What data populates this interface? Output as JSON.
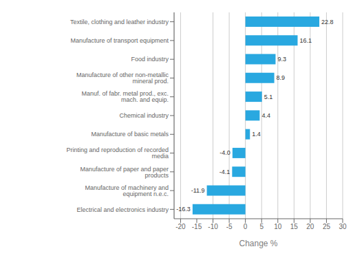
{
  "chart_data": {
    "type": "bar",
    "orientation": "horizontal",
    "categories": [
      "Electrical and electronics industry",
      "Manufacture of machinery and equipment n.e.c.",
      "Manufacture of paper and paper products",
      "Printing and reproduction of recorded media",
      "Manufacture of basic metals",
      "Chemical industry",
      "Manuf. of fabr. metal prod., exc. mach. and equip.",
      "Manufacture of other non-metallic mineral prod.",
      "Food industry",
      "Manufacture of transport equipment",
      "Textile, clothing and leather industry"
    ],
    "values": [
      -16.3,
      -11.9,
      -4.1,
      -4.0,
      1.4,
      4.4,
      5.1,
      8.9,
      9.3,
      16.1,
      22.8
    ],
    "value_labels": [
      "-16.3",
      "-11.9",
      "-4.1",
      "-4.0",
      "1.4",
      "4.4",
      "5.1",
      "8.9",
      "9.3",
      "16.1",
      "22.8"
    ],
    "color": "#29a8e0",
    "xlabel": "Change %",
    "xlim": [
      -22,
      30
    ],
    "xticks": [
      -20,
      -15,
      -10,
      -5,
      0,
      5,
      10,
      15,
      20,
      25,
      30
    ],
    "grid": true,
    "data_labels": true
  }
}
